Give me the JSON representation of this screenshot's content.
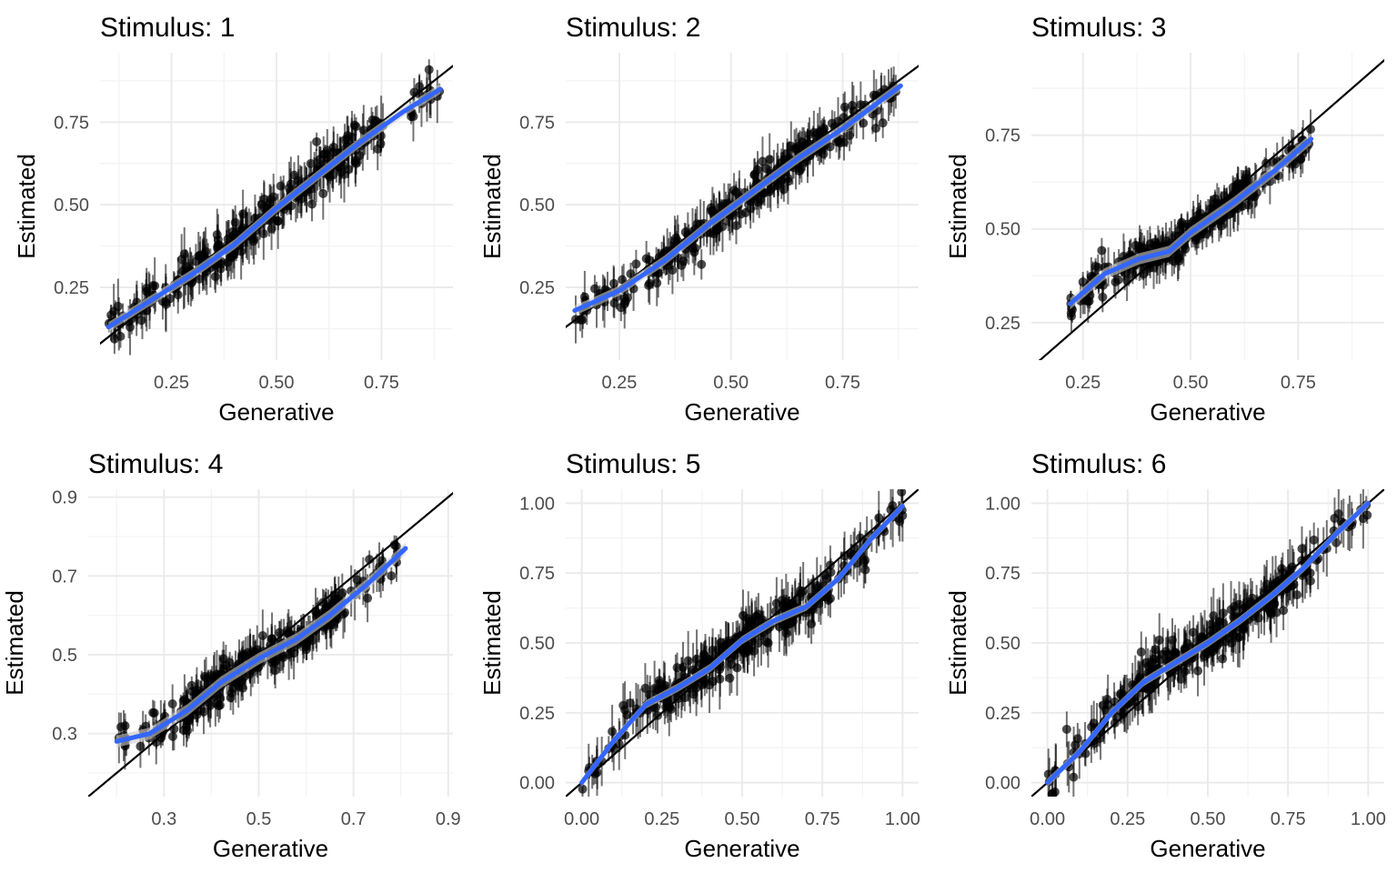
{
  "colors": {
    "points": "#000000",
    "smooth": "#3366ff",
    "identity": "#000000",
    "ribbon": "#cfcfcf",
    "grid": "#ebebeb"
  },
  "chart_data": [
    {
      "type": "scatter",
      "title": "Stimulus: 1",
      "xlabel": "Generative",
      "ylabel": "Estimated",
      "xlim": [
        0.08,
        0.92
      ],
      "ylim": [
        0.03,
        0.96
      ],
      "xticks": [
        0.25,
        0.5,
        0.75
      ],
      "xtick_labels": [
        "0.25",
        "0.50",
        "0.75"
      ],
      "yticks": [
        0.25,
        0.5,
        0.75
      ],
      "ytick_labels": [
        "0.25",
        "0.50",
        "0.75"
      ],
      "n_points": 300,
      "x_range": [
        0.1,
        0.89
      ],
      "smooth": {
        "x": [
          0.1,
          0.2,
          0.3,
          0.4,
          0.5,
          0.6,
          0.7,
          0.8,
          0.89
        ],
        "y": [
          0.13,
          0.21,
          0.29,
          0.38,
          0.49,
          0.59,
          0.69,
          0.78,
          0.85
        ]
      },
      "identity_line": true,
      "grid": true
    },
    {
      "type": "scatter",
      "title": "Stimulus: 2",
      "xlabel": "Generative",
      "ylabel": "Estimated",
      "xlim": [
        0.13,
        0.92
      ],
      "ylim": [
        0.03,
        0.96
      ],
      "xticks": [
        0.25,
        0.5,
        0.75
      ],
      "xtick_labels": [
        "0.25",
        "0.50",
        "0.75"
      ],
      "yticks": [
        0.25,
        0.5,
        0.75
      ],
      "ytick_labels": [
        "0.25",
        "0.50",
        "0.75"
      ],
      "n_points": 300,
      "x_range": [
        0.15,
        0.88
      ],
      "smooth": {
        "x": [
          0.15,
          0.25,
          0.35,
          0.45,
          0.55,
          0.65,
          0.75,
          0.88
        ],
        "y": [
          0.18,
          0.24,
          0.33,
          0.44,
          0.54,
          0.64,
          0.73,
          0.86
        ]
      },
      "identity_line": true,
      "grid": true
    },
    {
      "type": "scatter",
      "title": "Stimulus: 3",
      "xlabel": "Generative",
      "ylabel": "Estimated",
      "xlim": [
        0.13,
        0.95
      ],
      "ylim": [
        0.15,
        0.97
      ],
      "xticks": [
        0.25,
        0.5,
        0.75
      ],
      "xtick_labels": [
        "0.25",
        "0.50",
        "0.75"
      ],
      "yticks": [
        0.25,
        0.5,
        0.75
      ],
      "ytick_labels": [
        "0.25",
        "0.50",
        "0.75"
      ],
      "n_points": 300,
      "x_range": [
        0.22,
        0.78
      ],
      "smooth": {
        "x": [
          0.22,
          0.3,
          0.38,
          0.45,
          0.5,
          0.55,
          0.6,
          0.7,
          0.78
        ],
        "y": [
          0.3,
          0.38,
          0.42,
          0.44,
          0.49,
          0.53,
          0.57,
          0.66,
          0.74
        ]
      },
      "identity_line": true,
      "grid": true
    },
    {
      "type": "scatter",
      "title": "Stimulus: 4",
      "xlabel": "Generative",
      "ylabel": "Estimated",
      "xlim": [
        0.14,
        0.91
      ],
      "ylim": [
        0.14,
        0.92
      ],
      "xticks": [
        0.3,
        0.5,
        0.7,
        0.9
      ],
      "xtick_labels": [
        "0.3",
        "0.5",
        "0.7",
        "0.9"
      ],
      "yticks": [
        0.3,
        0.5,
        0.7,
        0.9
      ],
      "ytick_labels": [
        "0.3",
        "0.5",
        "0.7",
        "0.9"
      ],
      "n_points": 300,
      "x_range": [
        0.2,
        0.81
      ],
      "smooth": {
        "x": [
          0.2,
          0.27,
          0.35,
          0.42,
          0.5,
          0.58,
          0.65,
          0.73,
          0.81
        ],
        "y": [
          0.28,
          0.3,
          0.36,
          0.43,
          0.49,
          0.54,
          0.6,
          0.68,
          0.77
        ]
      },
      "identity_line": true,
      "grid": true
    },
    {
      "type": "scatter",
      "title": "Stimulus: 5",
      "xlabel": "Generative",
      "ylabel": "Estimated",
      "xlim": [
        -0.05,
        1.05
      ],
      "ylim": [
        -0.05,
        1.05
      ],
      "xticks": [
        0.0,
        0.25,
        0.5,
        0.75,
        1.0
      ],
      "xtick_labels": [
        "0.00",
        "0.25",
        "0.50",
        "0.75",
        "1.00"
      ],
      "yticks": [
        0.0,
        0.25,
        0.5,
        0.75,
        1.0
      ],
      "ytick_labels": [
        "0.00",
        "0.25",
        "0.50",
        "0.75",
        "1.00"
      ],
      "n_points": 300,
      "x_range": [
        0.0,
        1.0
      ],
      "smooth": {
        "x": [
          0.0,
          0.1,
          0.2,
          0.3,
          0.4,
          0.5,
          0.6,
          0.7,
          0.8,
          0.9,
          1.0
        ],
        "y": [
          0.0,
          0.15,
          0.28,
          0.34,
          0.41,
          0.51,
          0.58,
          0.63,
          0.73,
          0.87,
          0.99
        ]
      },
      "identity_line": true,
      "grid": true
    },
    {
      "type": "scatter",
      "title": "Stimulus: 6",
      "xlabel": "Generative",
      "ylabel": "Estimated",
      "xlim": [
        -0.05,
        1.05
      ],
      "ylim": [
        -0.05,
        1.05
      ],
      "xticks": [
        0.0,
        0.25,
        0.5,
        0.75,
        1.0
      ],
      "xtick_labels": [
        "0.00",
        "0.25",
        "0.50",
        "0.75",
        "1.00"
      ],
      "yticks": [
        0.0,
        0.25,
        0.5,
        0.75,
        1.0
      ],
      "ytick_labels": [
        "0.00",
        "0.25",
        "0.50",
        "0.75",
        "1.00"
      ],
      "n_points": 300,
      "x_range": [
        0.0,
        1.0
      ],
      "smooth": {
        "x": [
          0.0,
          0.1,
          0.2,
          0.3,
          0.4,
          0.5,
          0.6,
          0.7,
          0.8,
          0.9,
          1.0
        ],
        "y": [
          0.0,
          0.11,
          0.25,
          0.36,
          0.43,
          0.5,
          0.58,
          0.67,
          0.77,
          0.89,
          1.0
        ]
      },
      "identity_line": true,
      "grid": true
    }
  ]
}
